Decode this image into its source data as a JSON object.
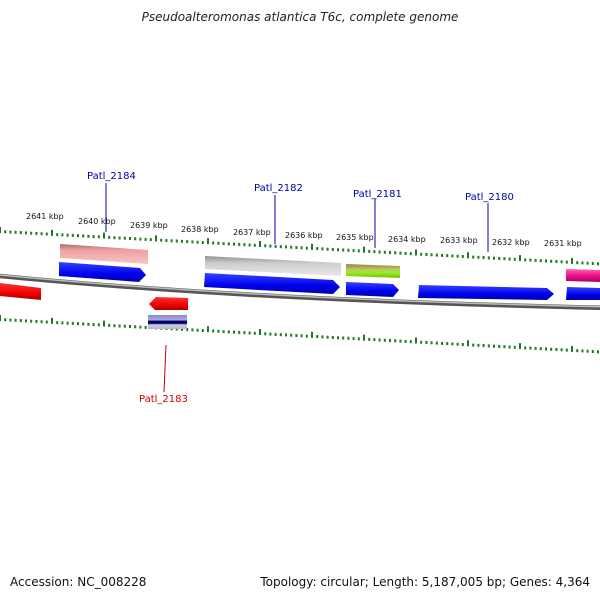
{
  "title": "Pseudoalteromonas atlantica T6c, complete genome",
  "footer": {
    "accession": "Accession: NC_008228",
    "summary": "Topology: circular; Length: 5,187,005 bp; Genes: 4,364"
  },
  "kbp_labels": [
    "2641 kbp",
    "2640 kbp",
    "2639 kbp",
    "2638 kbp",
    "2637 kbp",
    "2636 kbp",
    "2635 kbp",
    "2634 kbp",
    "2633 kbp",
    "2632 kbp",
    "2631 kbp"
  ],
  "gene_labels": [
    {
      "text": "Patl_2184",
      "strand": "forward"
    },
    {
      "text": "Patl_2182",
      "strand": "forward"
    },
    {
      "text": "Patl_2181",
      "strand": "forward"
    },
    {
      "text": "Patl_2180",
      "strand": "forward"
    },
    {
      "text": "Patl_2183",
      "strand": "reverse"
    }
  ],
  "colors": {
    "forward_label": "#0000aa",
    "reverse_label": "#cc0000",
    "cds_forward": "#0000ee",
    "cds_reverse": "#ee0000",
    "backbone": "#888888",
    "ticks": "#1f7a1f",
    "pink_feature": "#ee88aa",
    "gray_feature": "#bbbbbb",
    "green_feature": "#99dd33",
    "magenta_feature": "#ee1188"
  }
}
